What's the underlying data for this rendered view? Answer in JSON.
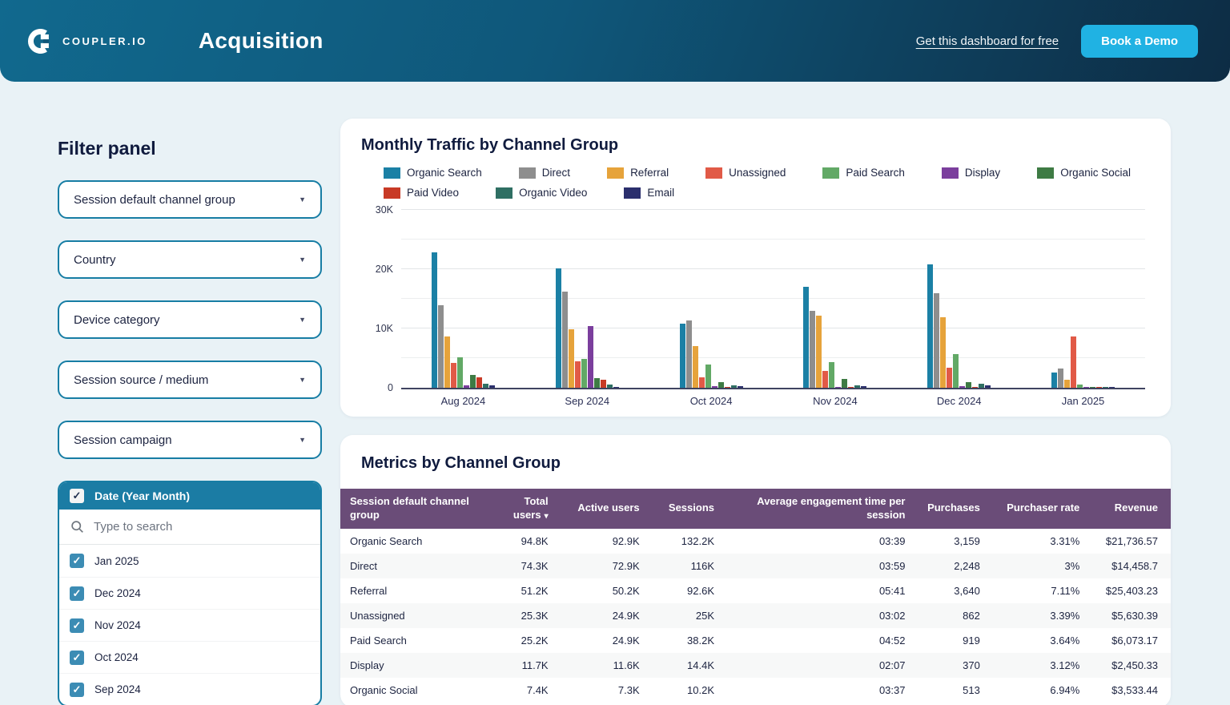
{
  "header": {
    "brand": "COUPLER.IO",
    "title": "Acquisition",
    "link_label": "Get this dashboard for free",
    "cta_label": "Book a Demo"
  },
  "filter_panel": {
    "title": "Filter panel",
    "dropdowns": [
      "Session default channel group",
      "Country",
      "Device category",
      "Session source / medium",
      "Session campaign"
    ],
    "date_filter": {
      "label": "Date (Year Month)",
      "checked": true,
      "search_placeholder": "Type to search",
      "options": [
        {
          "label": "Jan 2025",
          "checked": true
        },
        {
          "label": "Dec 2024",
          "checked": true
        },
        {
          "label": "Nov 2024",
          "checked": true
        },
        {
          "label": "Oct 2024",
          "checked": true
        },
        {
          "label": "Sep 2024",
          "checked": true
        }
      ]
    }
  },
  "chart_data": {
    "type": "bar",
    "title": "Monthly Traffic by Channel Group",
    "categories": [
      "Aug 2024",
      "Sep 2024",
      "Oct 2024",
      "Nov 2024",
      "Dec 2024",
      "Jan 2025"
    ],
    "ylim": [
      0,
      30000
    ],
    "yticks": [
      {
        "label": "0",
        "value": 0
      },
      {
        "label": "10K",
        "value": 10000
      },
      {
        "label": "20K",
        "value": 20000
      },
      {
        "label": "30K",
        "value": 30000
      }
    ],
    "gridline_values": [
      5000,
      10000,
      15000,
      20000,
      25000,
      30000
    ],
    "grid": true,
    "legend_position": "top",
    "legend_row_break": 7,
    "series": [
      {
        "name": "Organic Search",
        "color": "#1b80a5",
        "values": [
          22800,
          20200,
          10800,
          17000,
          20800,
          2600
        ]
      },
      {
        "name": "Direct",
        "color": "#8e8e8e",
        "values": [
          13900,
          16200,
          11400,
          13000,
          15900,
          3200
        ]
      },
      {
        "name": "Referral",
        "color": "#e6a33b",
        "values": [
          8700,
          9900,
          7000,
          12100,
          11900,
          1400
        ]
      },
      {
        "name": "Unassigned",
        "color": "#e15a47",
        "values": [
          4200,
          4400,
          1700,
          2900,
          3400,
          8600
        ]
      },
      {
        "name": "Paid Search",
        "color": "#62a966",
        "values": [
          5200,
          4900,
          3900,
          4300,
          5700,
          500
        ]
      },
      {
        "name": "Display",
        "color": "#7b3e9d",
        "values": [
          400,
          10400,
          300,
          150,
          250,
          60
        ]
      },
      {
        "name": "Organic Social",
        "color": "#3e7b44",
        "values": [
          2100,
          1600,
          950,
          1550,
          1000,
          120
        ]
      },
      {
        "name": "Paid Video",
        "color": "#c83a26",
        "values": [
          1800,
          1400,
          60,
          60,
          60,
          30
        ]
      },
      {
        "name": "Organic Video",
        "color": "#2f6f63",
        "values": [
          700,
          500,
          400,
          400,
          650,
          40
        ]
      },
      {
        "name": "Email",
        "color": "#2b2f6d",
        "values": [
          400,
          200,
          250,
          300,
          350,
          30
        ]
      }
    ]
  },
  "table_card": {
    "title": "Metrics by Channel Group",
    "columns": [
      {
        "label": "Session default channel group",
        "sortable": false
      },
      {
        "label": "Total users",
        "sortable": true
      },
      {
        "label": "Active users",
        "sortable": false
      },
      {
        "label": "Sessions",
        "sortable": false
      },
      {
        "label": "Average engagement time per session",
        "sortable": false
      },
      {
        "label": "Purchases",
        "sortable": false
      },
      {
        "label": "Purchaser rate",
        "sortable": false
      },
      {
        "label": "Revenue",
        "sortable": false
      }
    ],
    "rows": [
      [
        "Organic Search",
        "94.8K",
        "92.9K",
        "132.2K",
        "03:39",
        "3,159",
        "3.31%",
        "$21,736.57"
      ],
      [
        "Direct",
        "74.3K",
        "72.9K",
        "116K",
        "03:59",
        "2,248",
        "3%",
        "$14,458.7"
      ],
      [
        "Referral",
        "51.2K",
        "50.2K",
        "92.6K",
        "05:41",
        "3,640",
        "7.11%",
        "$25,403.23"
      ],
      [
        "Unassigned",
        "25.3K",
        "24.9K",
        "25K",
        "03:02",
        "862",
        "3.39%",
        "$5,630.39"
      ],
      [
        "Paid Search",
        "25.2K",
        "24.9K",
        "38.2K",
        "04:52",
        "919",
        "3.64%",
        "$6,073.17"
      ],
      [
        "Display",
        "11.7K",
        "11.6K",
        "14.4K",
        "02:07",
        "370",
        "3.12%",
        "$2,450.33"
      ],
      [
        "Organic Social",
        "7.4K",
        "7.3K",
        "10.2K",
        "03:37",
        "513",
        "6.94%",
        "$3,533.44"
      ]
    ]
  },
  "colors": {
    "page_bg": "#e9f2f6",
    "header_gradient_start": "#11698e",
    "header_gradient_end": "#0d2c44",
    "accent_teal": "#177da4",
    "checkbox_teal": "#3c8cb4",
    "cta_cyan": "#20b2e3",
    "table_header_purple": "#6a4c78",
    "text_navy": "#1c2340"
  }
}
